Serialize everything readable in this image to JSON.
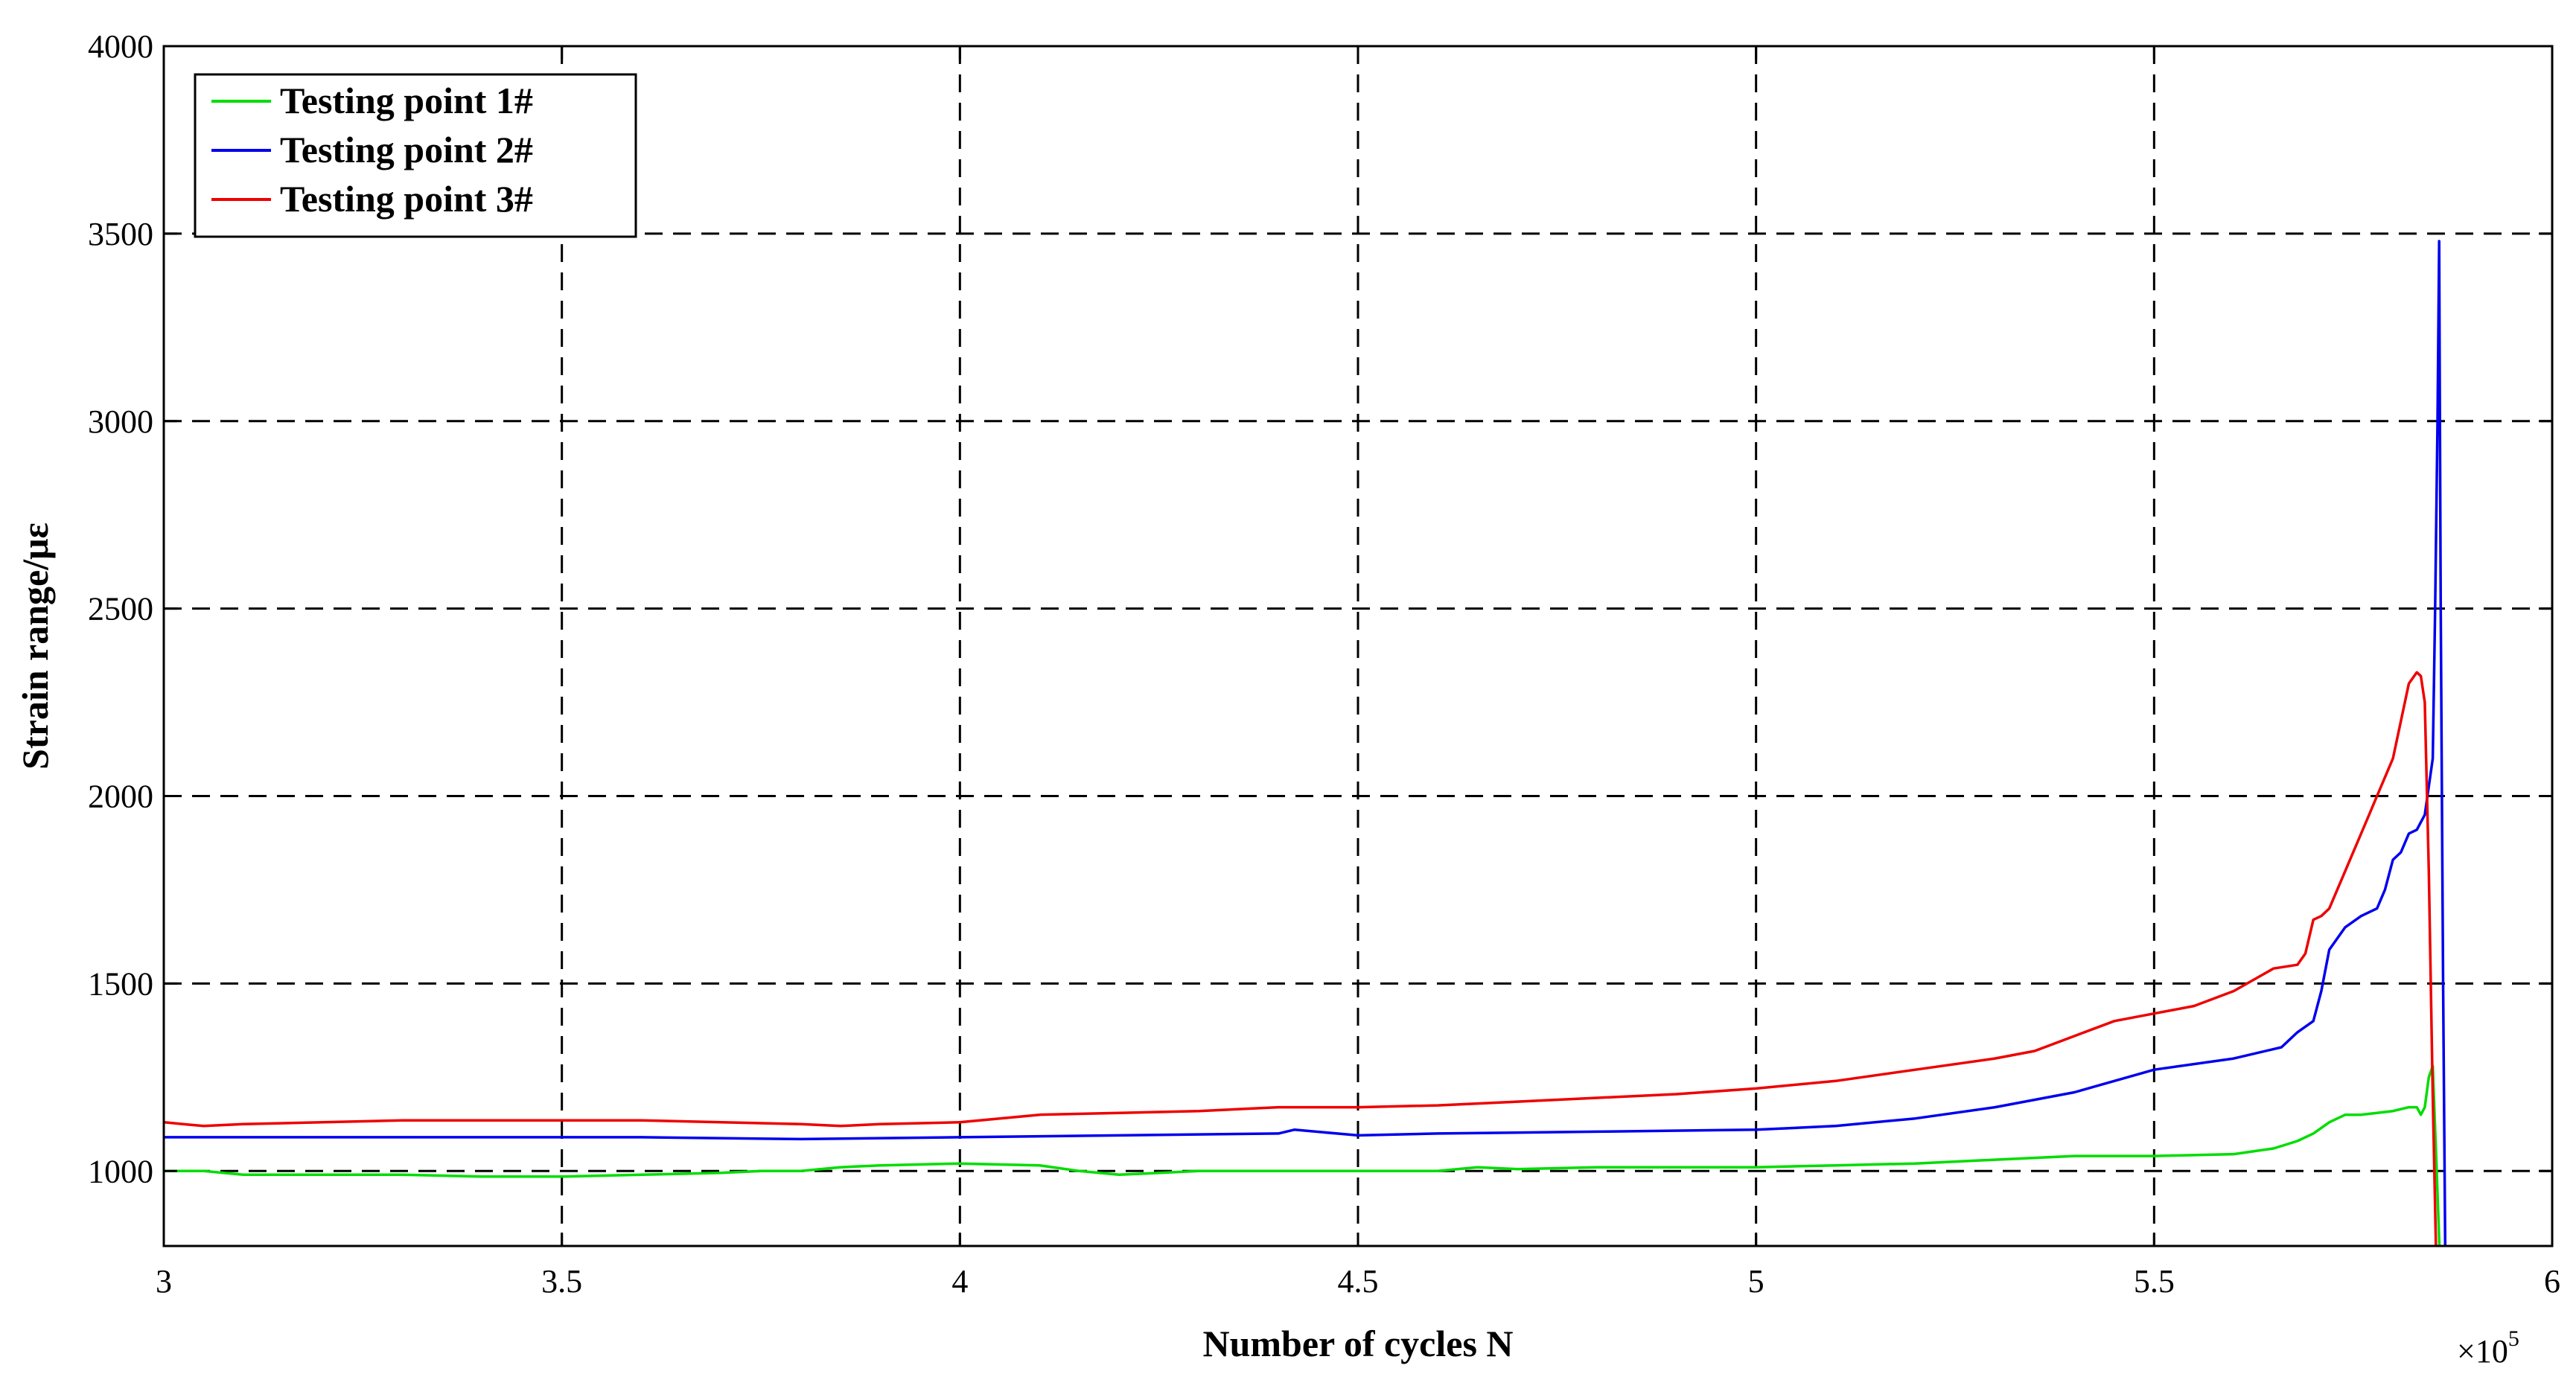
{
  "chart_data": {
    "type": "line",
    "xlabel": "Number of cycles N",
    "ylabel": "Strain range/με",
    "x_multiplier": "×10",
    "x_multiplier_exp": "5",
    "xlim": [
      3,
      6
    ],
    "ylim": [
      800,
      4000
    ],
    "xticks": [
      3,
      3.5,
      4,
      4.5,
      5,
      5.5,
      6
    ],
    "xtick_labels": [
      "3",
      "3.5",
      "4",
      "4.5",
      "5",
      "5.5",
      "6"
    ],
    "yticks": [
      1000,
      1500,
      2000,
      2500,
      3000,
      3500,
      4000
    ],
    "ytick_labels": [
      "1000",
      "1500",
      "2000",
      "2500",
      "3000",
      "3500",
      "4000"
    ],
    "grid": true,
    "legend_position": "top-left",
    "series": [
      {
        "name": "Testing point 1#",
        "color": "#00dd00",
        "x": [
          3.0,
          3.05,
          3.1,
          3.2,
          3.3,
          3.4,
          3.5,
          3.6,
          3.7,
          3.75,
          3.8,
          3.85,
          3.9,
          4.0,
          4.1,
          4.15,
          4.2,
          4.3,
          4.4,
          4.5,
          4.6,
          4.65,
          4.7,
          4.8,
          4.9,
          5.0,
          5.1,
          5.2,
          5.3,
          5.4,
          5.5,
          5.6,
          5.65,
          5.68,
          5.7,
          5.72,
          5.74,
          5.76,
          5.78,
          5.8,
          5.82,
          5.83,
          5.835,
          5.84,
          5.845,
          5.85,
          5.855,
          5.86
        ],
        "y": [
          1000,
          1000,
          990,
          990,
          990,
          985,
          985,
          990,
          995,
          1000,
          1000,
          1010,
          1015,
          1020,
          1015,
          1000,
          990,
          1000,
          1000,
          1000,
          1000,
          1010,
          1005,
          1010,
          1010,
          1010,
          1015,
          1020,
          1030,
          1040,
          1040,
          1045,
          1060,
          1080,
          1100,
          1130,
          1150,
          1150,
          1155,
          1160,
          1170,
          1170,
          1150,
          1170,
          1250,
          1280,
          1000,
          700
        ]
      },
      {
        "name": "Testing point 2#",
        "color": "#0000ee",
        "x": [
          3.0,
          3.2,
          3.4,
          3.6,
          3.8,
          4.0,
          4.2,
          4.4,
          4.42,
          4.5,
          4.6,
          4.8,
          5.0,
          5.1,
          5.2,
          5.3,
          5.4,
          5.5,
          5.6,
          5.66,
          5.68,
          5.7,
          5.71,
          5.72,
          5.74,
          5.76,
          5.78,
          5.79,
          5.8,
          5.81,
          5.82,
          5.83,
          5.84,
          5.85,
          5.853,
          5.856,
          5.858,
          5.86,
          5.863,
          5.866
        ],
        "y": [
          1090,
          1090,
          1090,
          1090,
          1085,
          1090,
          1095,
          1100,
          1110,
          1095,
          1100,
          1105,
          1110,
          1120,
          1140,
          1170,
          1210,
          1270,
          1300,
          1330,
          1370,
          1400,
          1480,
          1590,
          1650,
          1680,
          1700,
          1750,
          1830,
          1850,
          1900,
          1910,
          1950,
          2100,
          2500,
          3000,
          3480,
          2500,
          1500,
          700
        ]
      },
      {
        "name": "Testing point 3#",
        "color": "#ee0000",
        "x": [
          3.0,
          3.05,
          3.1,
          3.2,
          3.3,
          3.4,
          3.5,
          3.6,
          3.7,
          3.8,
          3.85,
          3.9,
          4.0,
          4.1,
          4.2,
          4.3,
          4.4,
          4.5,
          4.6,
          4.7,
          4.8,
          4.9,
          5.0,
          5.1,
          5.2,
          5.3,
          5.35,
          5.4,
          5.45,
          5.5,
          5.55,
          5.6,
          5.65,
          5.68,
          5.69,
          5.7,
          5.71,
          5.72,
          5.73,
          5.74,
          5.75,
          5.76,
          5.77,
          5.78,
          5.79,
          5.8,
          5.81,
          5.82,
          5.83,
          5.835,
          5.84,
          5.845,
          5.85,
          5.855
        ],
        "y": [
          1130,
          1120,
          1125,
          1130,
          1135,
          1135,
          1135,
          1135,
          1130,
          1125,
          1120,
          1125,
          1130,
          1150,
          1155,
          1160,
          1170,
          1170,
          1175,
          1185,
          1195,
          1205,
          1220,
          1240,
          1270,
          1300,
          1320,
          1360,
          1400,
          1420,
          1440,
          1480,
          1540,
          1550,
          1580,
          1670,
          1680,
          1700,
          1750,
          1800,
          1850,
          1900,
          1950,
          2000,
          2050,
          2100,
          2200,
          2300,
          2330,
          2320,
          2250,
          1800,
          1200,
          700
        ]
      }
    ]
  }
}
